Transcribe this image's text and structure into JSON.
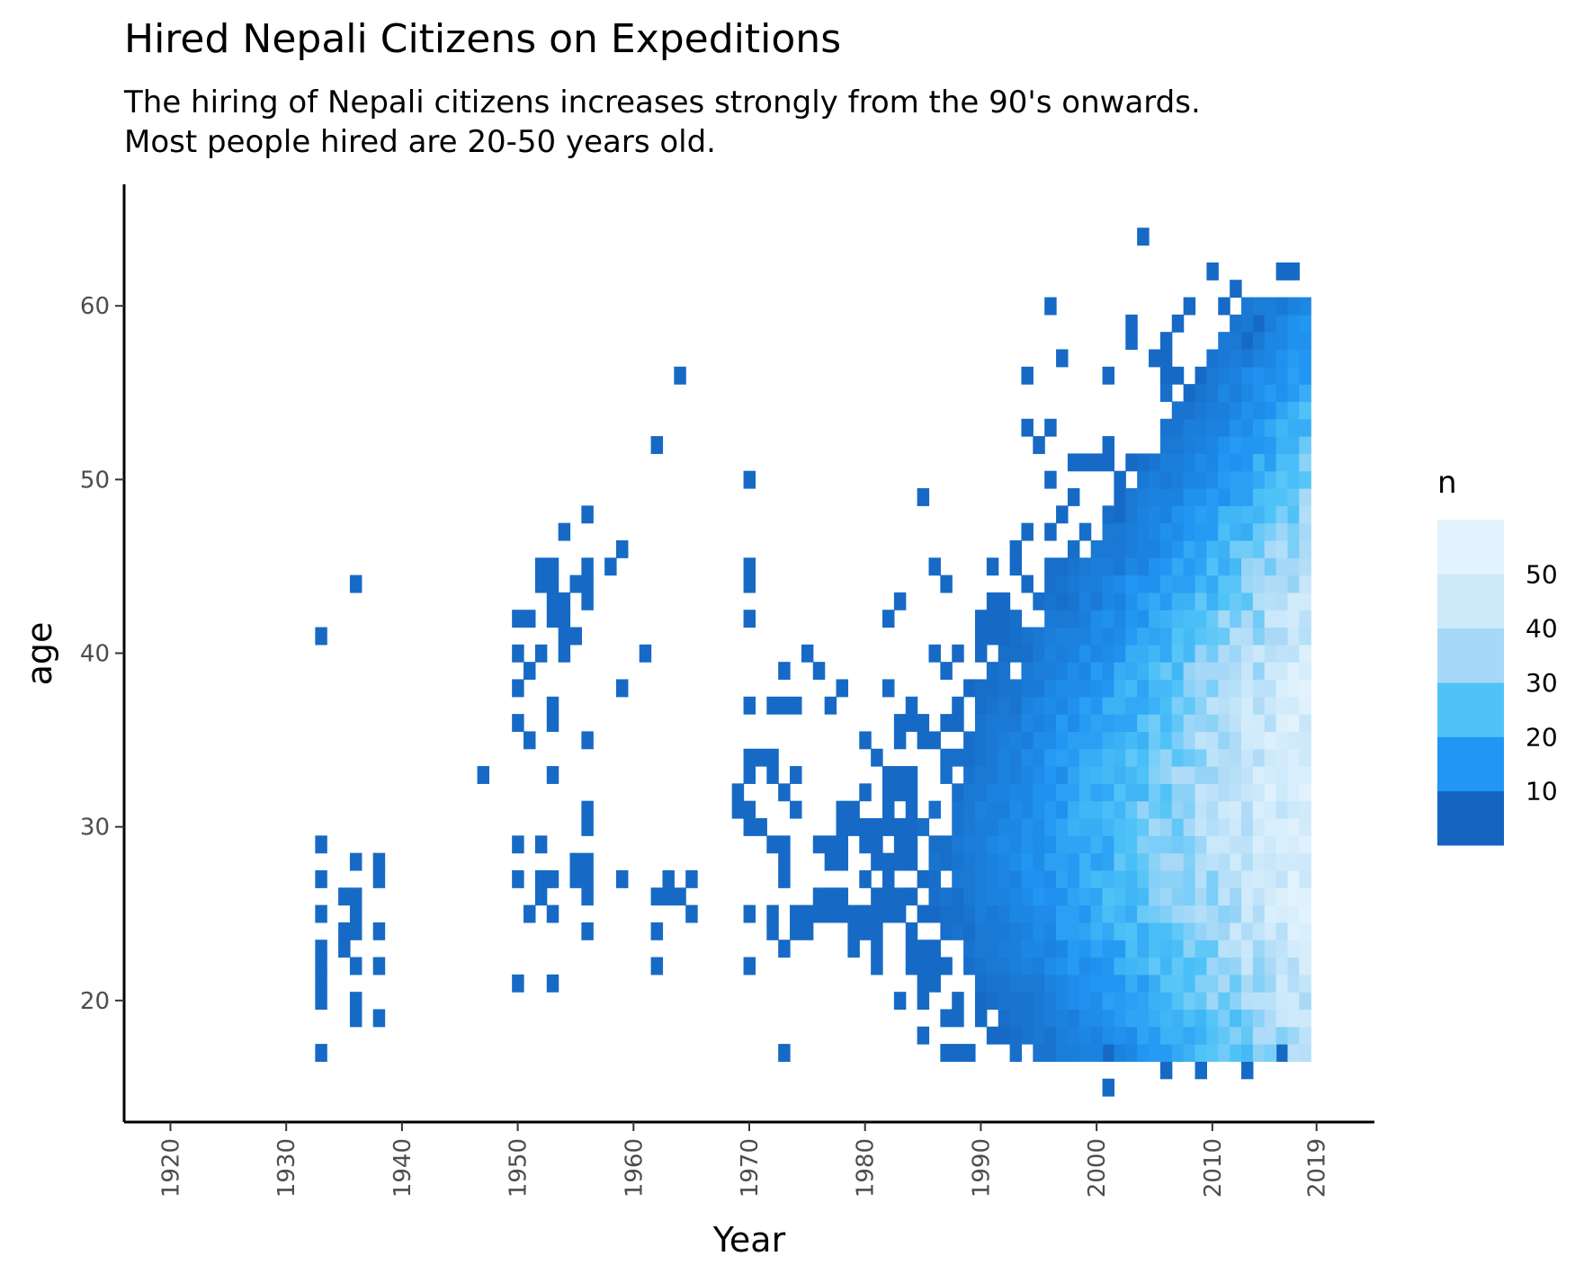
{
  "chart_data": {
    "type": "heatmap",
    "title": "Hired Nepali Citizens on Expeditions",
    "subtitle_lines": [
      "The hiring of Nepali citizens increases strongly from the 90's onwards.",
      "Most people hired are 20-50 years old."
    ],
    "xlabel": "Year",
    "ylabel": "age",
    "xlim": [
      1916,
      2024
    ],
    "ylim": [
      13,
      67
    ],
    "x_ticks": [
      "1920",
      "1930",
      "1940",
      "1950",
      "1960",
      "1970",
      "1980",
      "1990",
      "2000",
      "2010",
      "2019"
    ],
    "x_tick_values": [
      1920,
      1930,
      1940,
      1950,
      1960,
      1970,
      1980,
      1990,
      2000,
      2010,
      2019
    ],
    "y_ticks": [
      "20",
      "30",
      "40",
      "50",
      "60"
    ],
    "y_tick_values": [
      20,
      30,
      40,
      50,
      60
    ],
    "legend": {
      "title": "n",
      "placement": "right",
      "labels": [
        "10",
        "20",
        "30",
        "40",
        "50"
      ],
      "label_values": [
        10,
        20,
        30,
        40,
        50
      ],
      "range": [
        0,
        60
      ],
      "colors": [
        "#1565c0",
        "#2196f3",
        "#4fc3f7",
        "#a6d8f7",
        "#cde9fa",
        "#e3f3fd"
      ]
    },
    "cells": [
      [
        1933,
        41,
        1
      ],
      [
        1933,
        29,
        1
      ],
      [
        1933,
        27,
        1
      ],
      [
        1933,
        25,
        1
      ],
      [
        1933,
        23,
        1
      ],
      [
        1933,
        22,
        1
      ],
      [
        1933,
        21,
        1
      ],
      [
        1933,
        20,
        1
      ],
      [
        1933,
        17,
        1
      ],
      [
        1936,
        44,
        1
      ],
      [
        1936,
        28,
        1
      ],
      [
        1935,
        26,
        1
      ],
      [
        1936,
        26,
        1
      ],
      [
        1936,
        25,
        1
      ],
      [
        1935,
        24,
        1
      ],
      [
        1936,
        24,
        1
      ],
      [
        1935,
        23,
        1
      ],
      [
        1936,
        22,
        1
      ],
      [
        1936,
        20,
        1
      ],
      [
        1936,
        19,
        1
      ],
      [
        1938,
        28,
        1
      ],
      [
        1938,
        27,
        1
      ],
      [
        1938,
        24,
        1
      ],
      [
        1938,
        22,
        1
      ],
      [
        1938,
        19,
        1
      ],
      [
        1947,
        33,
        1
      ],
      [
        1950,
        42,
        1
      ],
      [
        1951,
        42,
        1
      ],
      [
        1950,
        40,
        1
      ],
      [
        1951,
        39,
        1
      ],
      [
        1950,
        38,
        1
      ],
      [
        1950,
        36,
        1
      ],
      [
        1951,
        35,
        1
      ],
      [
        1950,
        29,
        1
      ],
      [
        1950,
        27,
        1
      ],
      [
        1951,
        25,
        1
      ],
      [
        1950,
        21,
        1
      ],
      [
        1952,
        45,
        1
      ],
      [
        1953,
        45,
        1
      ],
      [
        1952,
        44,
        1
      ],
      [
        1953,
        44,
        1
      ],
      [
        1953,
        43,
        1
      ],
      [
        1954,
        43,
        1
      ],
      [
        1953,
        42,
        1
      ],
      [
        1954,
        42,
        1
      ],
      [
        1952,
        40,
        1
      ],
      [
        1953,
        37,
        1
      ],
      [
        1953,
        36,
        1
      ],
      [
        1953,
        33,
        1
      ],
      [
        1952,
        29,
        1
      ],
      [
        1952,
        27,
        1
      ],
      [
        1953,
        27,
        1
      ],
      [
        1952,
        26,
        1
      ],
      [
        1953,
        25,
        1
      ],
      [
        1953,
        21,
        1
      ],
      [
        1954,
        47,
        1
      ],
      [
        1956,
        48,
        1
      ],
      [
        1956,
        45,
        1
      ],
      [
        1956,
        44,
        1
      ],
      [
        1956,
        43,
        1
      ],
      [
        1955,
        44,
        1
      ],
      [
        1955,
        41,
        1
      ],
      [
        1954,
        41,
        1
      ],
      [
        1954,
        40,
        1
      ],
      [
        1956,
        35,
        1
      ],
      [
        1956,
        31,
        1
      ],
      [
        1956,
        30,
        1
      ],
      [
        1955,
        28,
        1
      ],
      [
        1956,
        28,
        1
      ],
      [
        1955,
        27,
        1
      ],
      [
        1956,
        27,
        1
      ],
      [
        1956,
        26,
        1
      ],
      [
        1956,
        24,
        1
      ],
      [
        1958,
        45,
        1
      ],
      [
        1959,
        46,
        1
      ],
      [
        1959,
        38,
        1
      ],
      [
        1959,
        27,
        1
      ],
      [
        1961,
        40,
        1
      ],
      [
        1962,
        52,
        1
      ],
      [
        1962,
        26,
        1
      ],
      [
        1963,
        27,
        1
      ],
      [
        1963,
        26,
        1
      ],
      [
        1962,
        24,
        1
      ],
      [
        1962,
        22,
        1
      ],
      [
        1964,
        56,
        1
      ],
      [
        1964,
        26,
        1
      ],
      [
        1965,
        27,
        1
      ],
      [
        1965,
        25,
        1
      ],
      [
        1970,
        50,
        1
      ],
      [
        1970,
        45,
        1
      ],
      [
        1970,
        44,
        1
      ],
      [
        1970,
        42,
        1
      ],
      [
        1970,
        37,
        1
      ],
      [
        1970,
        34,
        1
      ],
      [
        1971,
        34,
        1
      ],
      [
        1972,
        34,
        1
      ],
      [
        1970,
        33,
        1
      ],
      [
        1972,
        33,
        1
      ],
      [
        1969,
        32,
        1
      ],
      [
        1970,
        31,
        1
      ],
      [
        1969,
        31,
        1
      ],
      [
        1970,
        30,
        1
      ],
      [
        1971,
        30,
        1
      ],
      [
        1970,
        25,
        1
      ],
      [
        1970,
        22,
        1
      ],
      [
        1972,
        37,
        1
      ],
      [
        1973,
        37,
        1
      ],
      [
        1974,
        37,
        1
      ],
      [
        1973,
        39,
        1
      ],
      [
        1973,
        32,
        1
      ],
      [
        1974,
        33,
        1
      ],
      [
        1974,
        31,
        1
      ],
      [
        1972,
        29,
        1
      ],
      [
        1973,
        29,
        1
      ],
      [
        1973,
        28,
        1
      ],
      [
        1973,
        27,
        1
      ],
      [
        1972,
        25,
        1
      ],
      [
        1972,
        24,
        1
      ],
      [
        1973,
        23,
        1
      ],
      [
        1973,
        17,
        1
      ],
      [
        1975,
        40,
        1
      ],
      [
        1976,
        39,
        1
      ],
      [
        1977,
        37,
        1
      ],
      [
        1978,
        38,
        1
      ],
      [
        1976,
        29,
        1
      ],
      [
        1977,
        28,
        1
      ],
      [
        1976,
        26,
        1
      ],
      [
        1977,
        26,
        1
      ],
      [
        1978,
        26,
        1
      ],
      [
        1975,
        25,
        1
      ],
      [
        1976,
        25,
        1
      ],
      [
        1974,
        25,
        1
      ],
      [
        1974,
        24,
        1
      ],
      [
        1975,
        24,
        1
      ],
      [
        1982,
        42,
        1
      ],
      [
        1983,
        43,
        1
      ],
      [
        1982,
        38,
        1
      ],
      [
        1985,
        49,
        1
      ],
      [
        1986,
        45,
        1
      ],
      [
        1987,
        44,
        1
      ],
      [
        1991,
        45,
        1
      ],
      [
        1992,
        43,
        1
      ],
      [
        1993,
        46,
        1
      ],
      [
        1994,
        47,
        1
      ],
      [
        1994,
        53,
        1
      ],
      [
        1995,
        52,
        1
      ],
      [
        1996,
        53,
        1
      ],
      [
        1996,
        50,
        1
      ],
      [
        1997,
        48,
        1
      ],
      [
        1998,
        49,
        1
      ],
      [
        2001,
        52,
        1
      ],
      [
        2001,
        51,
        1
      ],
      [
        2001,
        56,
        1
      ],
      [
        2002,
        50,
        1
      ],
      [
        2002,
        49,
        1
      ],
      [
        2002,
        48,
        1
      ],
      [
        2003,
        58,
        1
      ],
      [
        2003,
        59,
        1
      ],
      [
        2004,
        64,
        1
      ],
      [
        2003,
        51,
        1
      ],
      [
        2005,
        57,
        1
      ],
      [
        2006,
        56,
        1
      ],
      [
        2007,
        56,
        1
      ],
      [
        2007,
        59,
        1
      ],
      [
        2008,
        55,
        1
      ],
      [
        2008,
        60,
        1
      ],
      [
        2009,
        56,
        1
      ],
      [
        2010,
        62,
        1
      ],
      [
        2011,
        60,
        1
      ],
      [
        2012,
        61,
        1
      ],
      [
        2013,
        58,
        1
      ],
      [
        2014,
        59,
        1
      ],
      [
        2016,
        62,
        1
      ],
      [
        2017,
        62,
        1
      ],
      [
        1988,
        17,
        1
      ],
      [
        1992,
        18,
        1
      ],
      [
        2001,
        17,
        1
      ],
      [
        2001,
        15,
        1
      ],
      [
        2006,
        16,
        1
      ],
      [
        2009,
        16,
        1
      ],
      [
        2013,
        16,
        1
      ],
      [
        2016,
        17,
        1
      ]
    ],
    "dense_region": {
      "x_range": [
        1977,
        2018
      ],
      "center_year": 2018,
      "center_age": 31,
      "peak_n": 55
    }
  }
}
